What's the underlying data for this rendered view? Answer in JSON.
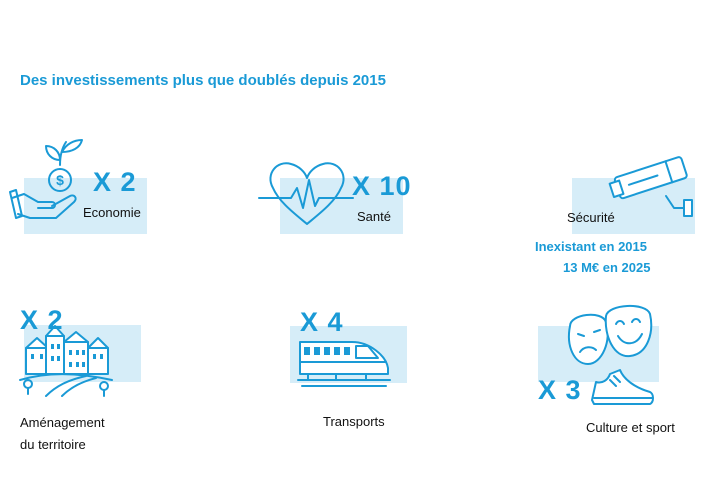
{
  "title": "Des investissements plus que doublés depuis 2015",
  "colors": {
    "accent": "#1a9ad6",
    "panel": "#d6edf8",
    "text": "#111111"
  },
  "items": {
    "economie": {
      "multiplier": "X 2",
      "label": "Economie",
      "icon": "hand-coin-plant-icon"
    },
    "sante": {
      "multiplier": "X 10",
      "label": "Santé",
      "icon": "heart-pulse-icon"
    },
    "securite": {
      "label": "Sécurité",
      "note_line1": "Inexistant en 2015",
      "note_line2": "13 M€ en 2025",
      "icon": "security-camera-icon"
    },
    "amenagement": {
      "multiplier": "X 2",
      "label_line1": "Aménagement",
      "label_line2": "du territoire",
      "icon": "town-landscape-icon"
    },
    "transports": {
      "multiplier": "X 4",
      "label": "Transports",
      "icon": "high-speed-train-icon"
    },
    "culture": {
      "multiplier": "X 3",
      "label": "Culture et sport",
      "icon": "theater-masks-sneaker-icon"
    }
  }
}
